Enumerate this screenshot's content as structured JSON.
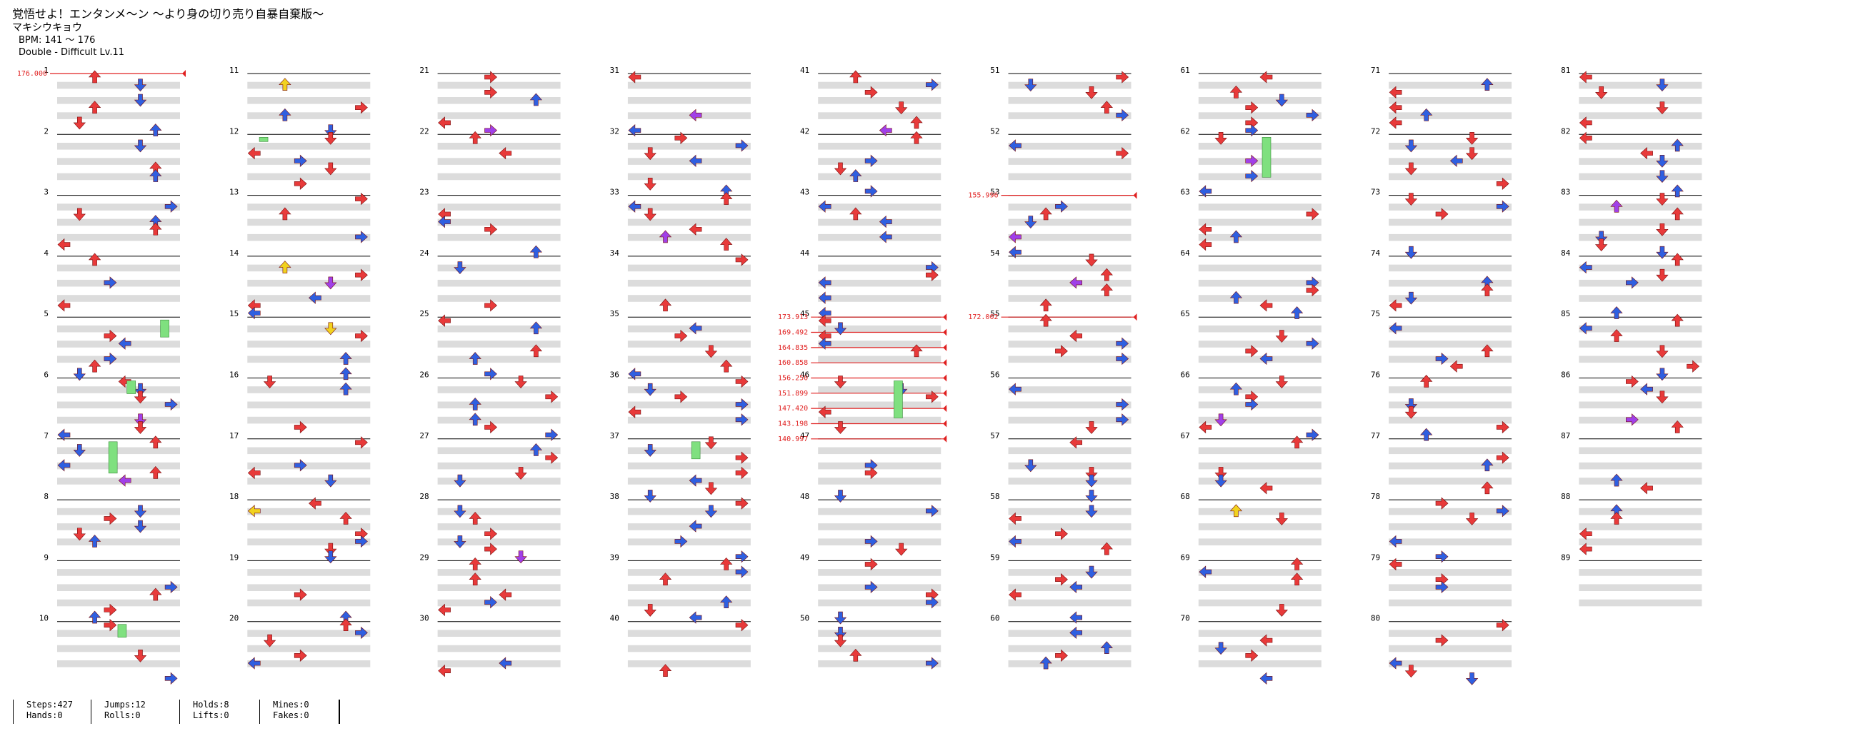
{
  "song": {
    "title": "覚悟せよ！エンタンメ～ン ～より身の切り売り自暴自棄版～",
    "artist": "マキシウキョウ",
    "bpm": "BPM: 141 ～ 176",
    "difficulty": "Double - Difficult Lv.11"
  },
  "chart": {
    "measure_numbers": [
      "1",
      "2",
      "3",
      "4",
      "5",
      "6",
      "7",
      "8",
      "9",
      "10",
      "11",
      "12",
      "13",
      "14",
      "15",
      "16",
      "17",
      "18",
      "19",
      "20",
      "21",
      "22",
      "23",
      "24",
      "25",
      "26",
      "27",
      "28",
      "29",
      "30",
      "31",
      "32",
      "33",
      "34",
      "35",
      "36",
      "37",
      "38",
      "39",
      "40",
      "41",
      "42",
      "43",
      "44",
      "45",
      "46",
      "47",
      "48",
      "49",
      "50",
      "51",
      "52",
      "53",
      "54",
      "55",
      "56",
      "57",
      "58",
      "59",
      "60",
      "61",
      "62",
      "63",
      "64",
      "65",
      "66",
      "67",
      "68",
      "69",
      "70",
      "71",
      "72",
      "73",
      "74",
      "75",
      "76",
      "77",
      "78",
      "79",
      "80",
      "81",
      "82",
      "83",
      "84",
      "85",
      "86",
      "87",
      "88",
      "89"
    ],
    "bpm_changes": [
      {
        "label": "176.000",
        "measure": 1.0,
        "side": "left"
      },
      {
        "label": "155.996",
        "measure": 53.0,
        "side": "left"
      },
      {
        "label": "172.002",
        "measure": 55.0,
        "side": "left"
      },
      {
        "label": "173.913",
        "measure": 45.0,
        "side": "left"
      },
      {
        "label": "169.492",
        "measure": 45.25,
        "side": "left"
      },
      {
        "label": "164.835",
        "measure": 45.5,
        "side": "left"
      },
      {
        "label": "160.858",
        "measure": 45.75,
        "side": "left"
      },
      {
        "label": "156.250",
        "measure": 46.0,
        "side": "left"
      },
      {
        "label": "151.899",
        "measure": 46.25,
        "side": "left"
      },
      {
        "label": "147.420",
        "measure": 46.5,
        "side": "left"
      },
      {
        "label": "143.198",
        "measure": 46.75,
        "side": "left"
      },
      {
        "label": "140.997",
        "measure": 47.0,
        "side": "left"
      }
    ],
    "colors": {
      "quarter": "#e83a3a",
      "eighth": "#2f5fe0",
      "sixteenth": "#a040e8",
      "other": "#f1d21f",
      "hold": "#7fe07f",
      "band": "#dcdcdc",
      "bpm_line": "#e02020"
    }
  },
  "stats": {
    "steps": "Steps:427",
    "hands": "Hands:0",
    "jumps": "Jumps:12",
    "rolls": "Rolls:0",
    "holds": "Holds:8",
    "lifts": "Lifts:0",
    "mines": "Mines:0",
    "fakes": "Fakes:0"
  }
}
